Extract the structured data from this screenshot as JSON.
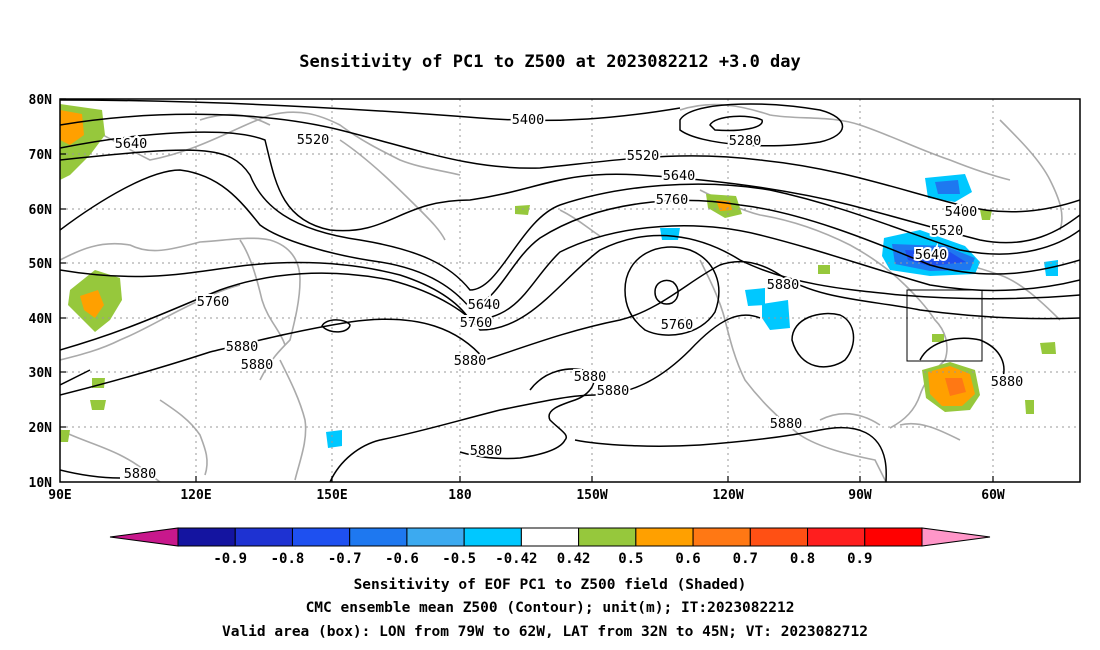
{
  "title": "Sensitivity of PC1 to Z500 at 2023082212 +3.0 day",
  "y_ticks": [
    "80N",
    "70N",
    "60N",
    "50N",
    "40N",
    "30N",
    "20N",
    "10N"
  ],
  "x_ticks": [
    "90E",
    "120E",
    "150E",
    "180",
    "150W",
    "120W",
    "90W",
    "60W"
  ],
  "contour_labels": [
    "5400",
    "5520",
    "5640",
    "5280",
    "5520",
    "5640",
    "5760",
    "5400",
    "5520",
    "5640",
    "5760",
    "5640",
    "5760",
    "5760",
    "5880",
    "5880",
    "5880",
    "5880",
    "5880",
    "5880",
    "5880",
    "5880",
    "5880"
  ],
  "colorbar": {
    "labels": [
      "-0.9",
      "-0.8",
      "-0.7",
      "-0.6",
      "-0.5",
      "-0.42",
      "0.42",
      "0.5",
      "0.6",
      "0.7",
      "0.8",
      "0.9"
    ],
    "colors": [
      "#c8188c",
      "#1414a0",
      "#1e32d2",
      "#1e50f0",
      "#1e78f0",
      "#3caaf0",
      "#00c8ff",
      "#ffffff",
      "#96c83c",
      "#ffa000",
      "#ff7814",
      "#ff5014",
      "#ff1e1e",
      "#ff0000",
      "#ff96c8"
    ]
  },
  "footer": [
    "Sensitivity of EOF PC1 to Z500 field (Shaded)",
    "CMC ensemble mean Z500 (Contour); unit(m); IT:2023082212",
    "Valid area (box): LON from 79W to 62W, LAT from 32N to 45N; VT: 2023082712"
  ],
  "valid_box": {
    "lon": [
      -79,
      -62
    ],
    "lat": [
      32,
      45
    ]
  }
}
